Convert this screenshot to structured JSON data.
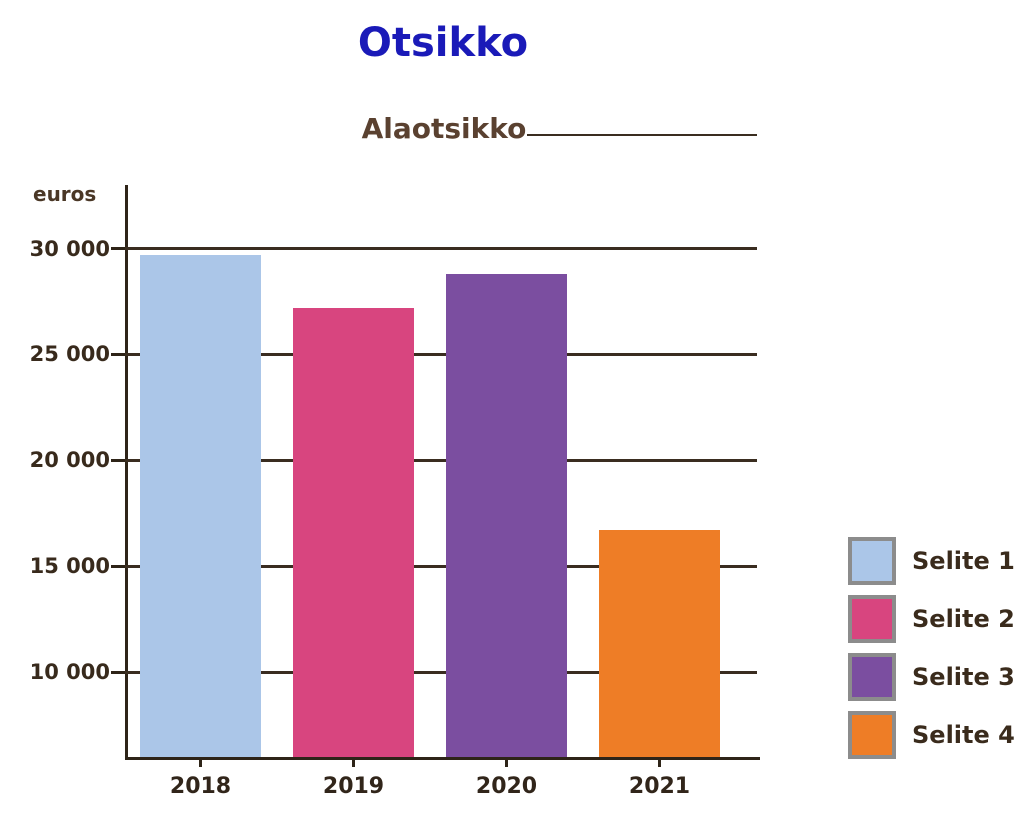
{
  "header": {
    "title": "Otsikko",
    "subtitle": "Alaotsikko"
  },
  "chart_data": {
    "type": "bar",
    "title": "Otsikko",
    "subtitle": "Alaotsikko",
    "ylabel": "euros",
    "xlabel": "",
    "categories": [
      "2018",
      "2019",
      "2020",
      "2021"
    ],
    "values": [
      29700,
      27200,
      28800,
      16700
    ],
    "bar_colors": [
      "#abc6e8",
      "#d8457f",
      "#7b4ea0",
      "#ee7d26"
    ],
    "y_ticks": [
      30000,
      25000,
      20000,
      15000,
      10000
    ],
    "ylim": [
      6000,
      33000
    ],
    "grid": true,
    "legend_position": "right",
    "legend": [
      {
        "label": "Selite 1",
        "color": "#abc6e8"
      },
      {
        "label": "Selite 2",
        "color": "#d8457f"
      },
      {
        "label": "Selite 3",
        "color": "#7b4ea0"
      },
      {
        "label": "Selite 4",
        "color": "#ee7d26"
      }
    ]
  },
  "colors": {
    "background": "#ffffff",
    "title_text": "#1a1ab8",
    "subtitle_text": "#5a4130",
    "axis_line": "#2e2418",
    "gridline": "#3a2d20",
    "tick_text": "#382a1c",
    "legend_border": "#8c8c8c"
  }
}
